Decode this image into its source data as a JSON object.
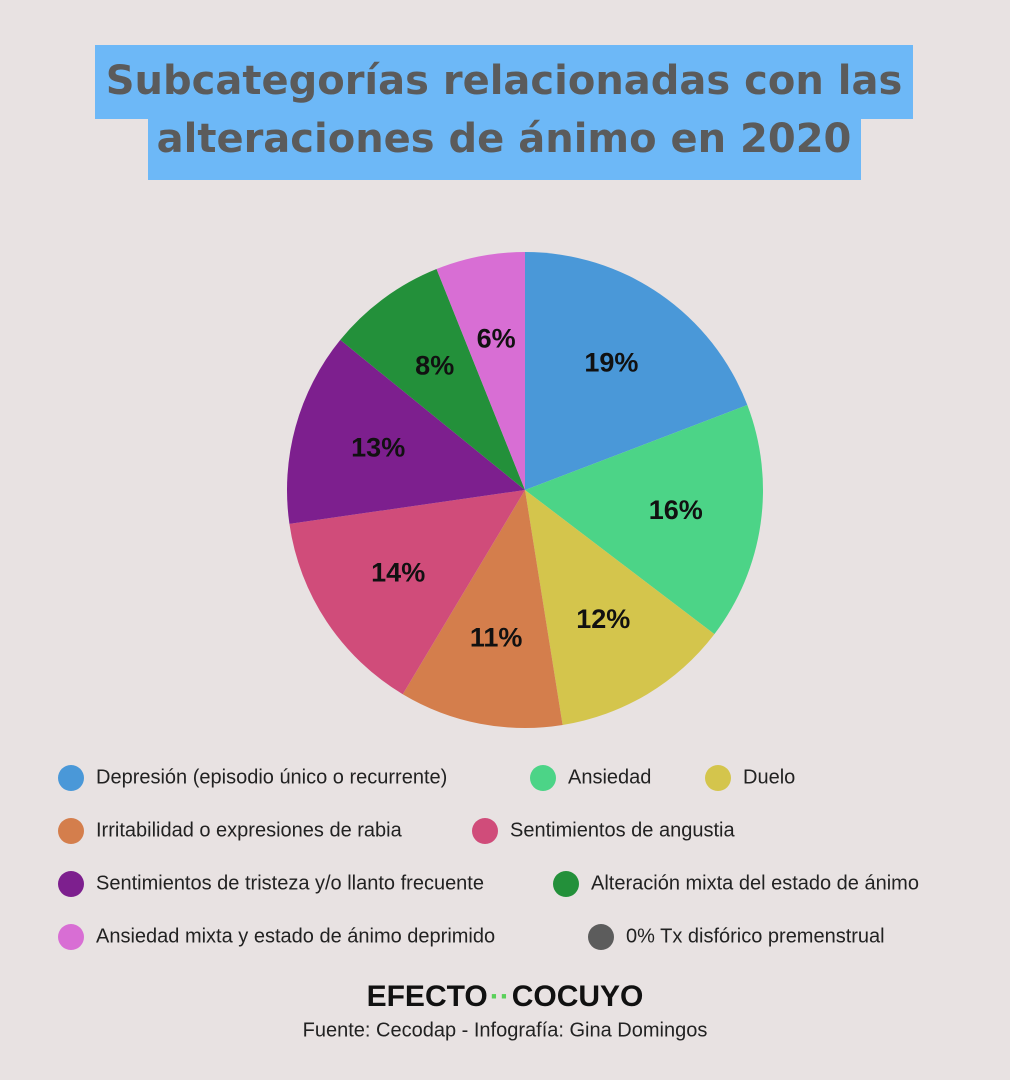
{
  "chart_data": {
    "type": "pie",
    "title": [
      "Subcategorías relacionadas con las",
      "alteraciones de ánimo en 2020"
    ],
    "categories": [
      "Depresión (episodio único o recurrente)",
      "Ansiedad",
      "Duelo",
      "Irritabilidad o expresiones de rabia",
      "Sentimientos de angustia",
      "Sentimientos de tristeza y/o llanto frecuente",
      "Alteración mixta del estado de ánimo",
      "Ansiedad mixta y estado de ánimo deprimido",
      "0% Tx disfórico premenstrual"
    ],
    "values": [
      19,
      16,
      12,
      11,
      14,
      13,
      8,
      6,
      0
    ],
    "value_labels": [
      "19%",
      "16%",
      "12%",
      "11%",
      "14%",
      "13%",
      "8%",
      "6%",
      null
    ],
    "colors": [
      "#4a98d8",
      "#4cd487",
      "#d4c54c",
      "#d47e4c",
      "#d04c7a",
      "#7d1f8e",
      "#23903a",
      "#d86ed4",
      "#5c5c5c"
    ],
    "logo": [
      "EFECTO",
      "COCUYO"
    ],
    "source": "Fuente: Cecodap - Infografía: Gina Domingos"
  }
}
